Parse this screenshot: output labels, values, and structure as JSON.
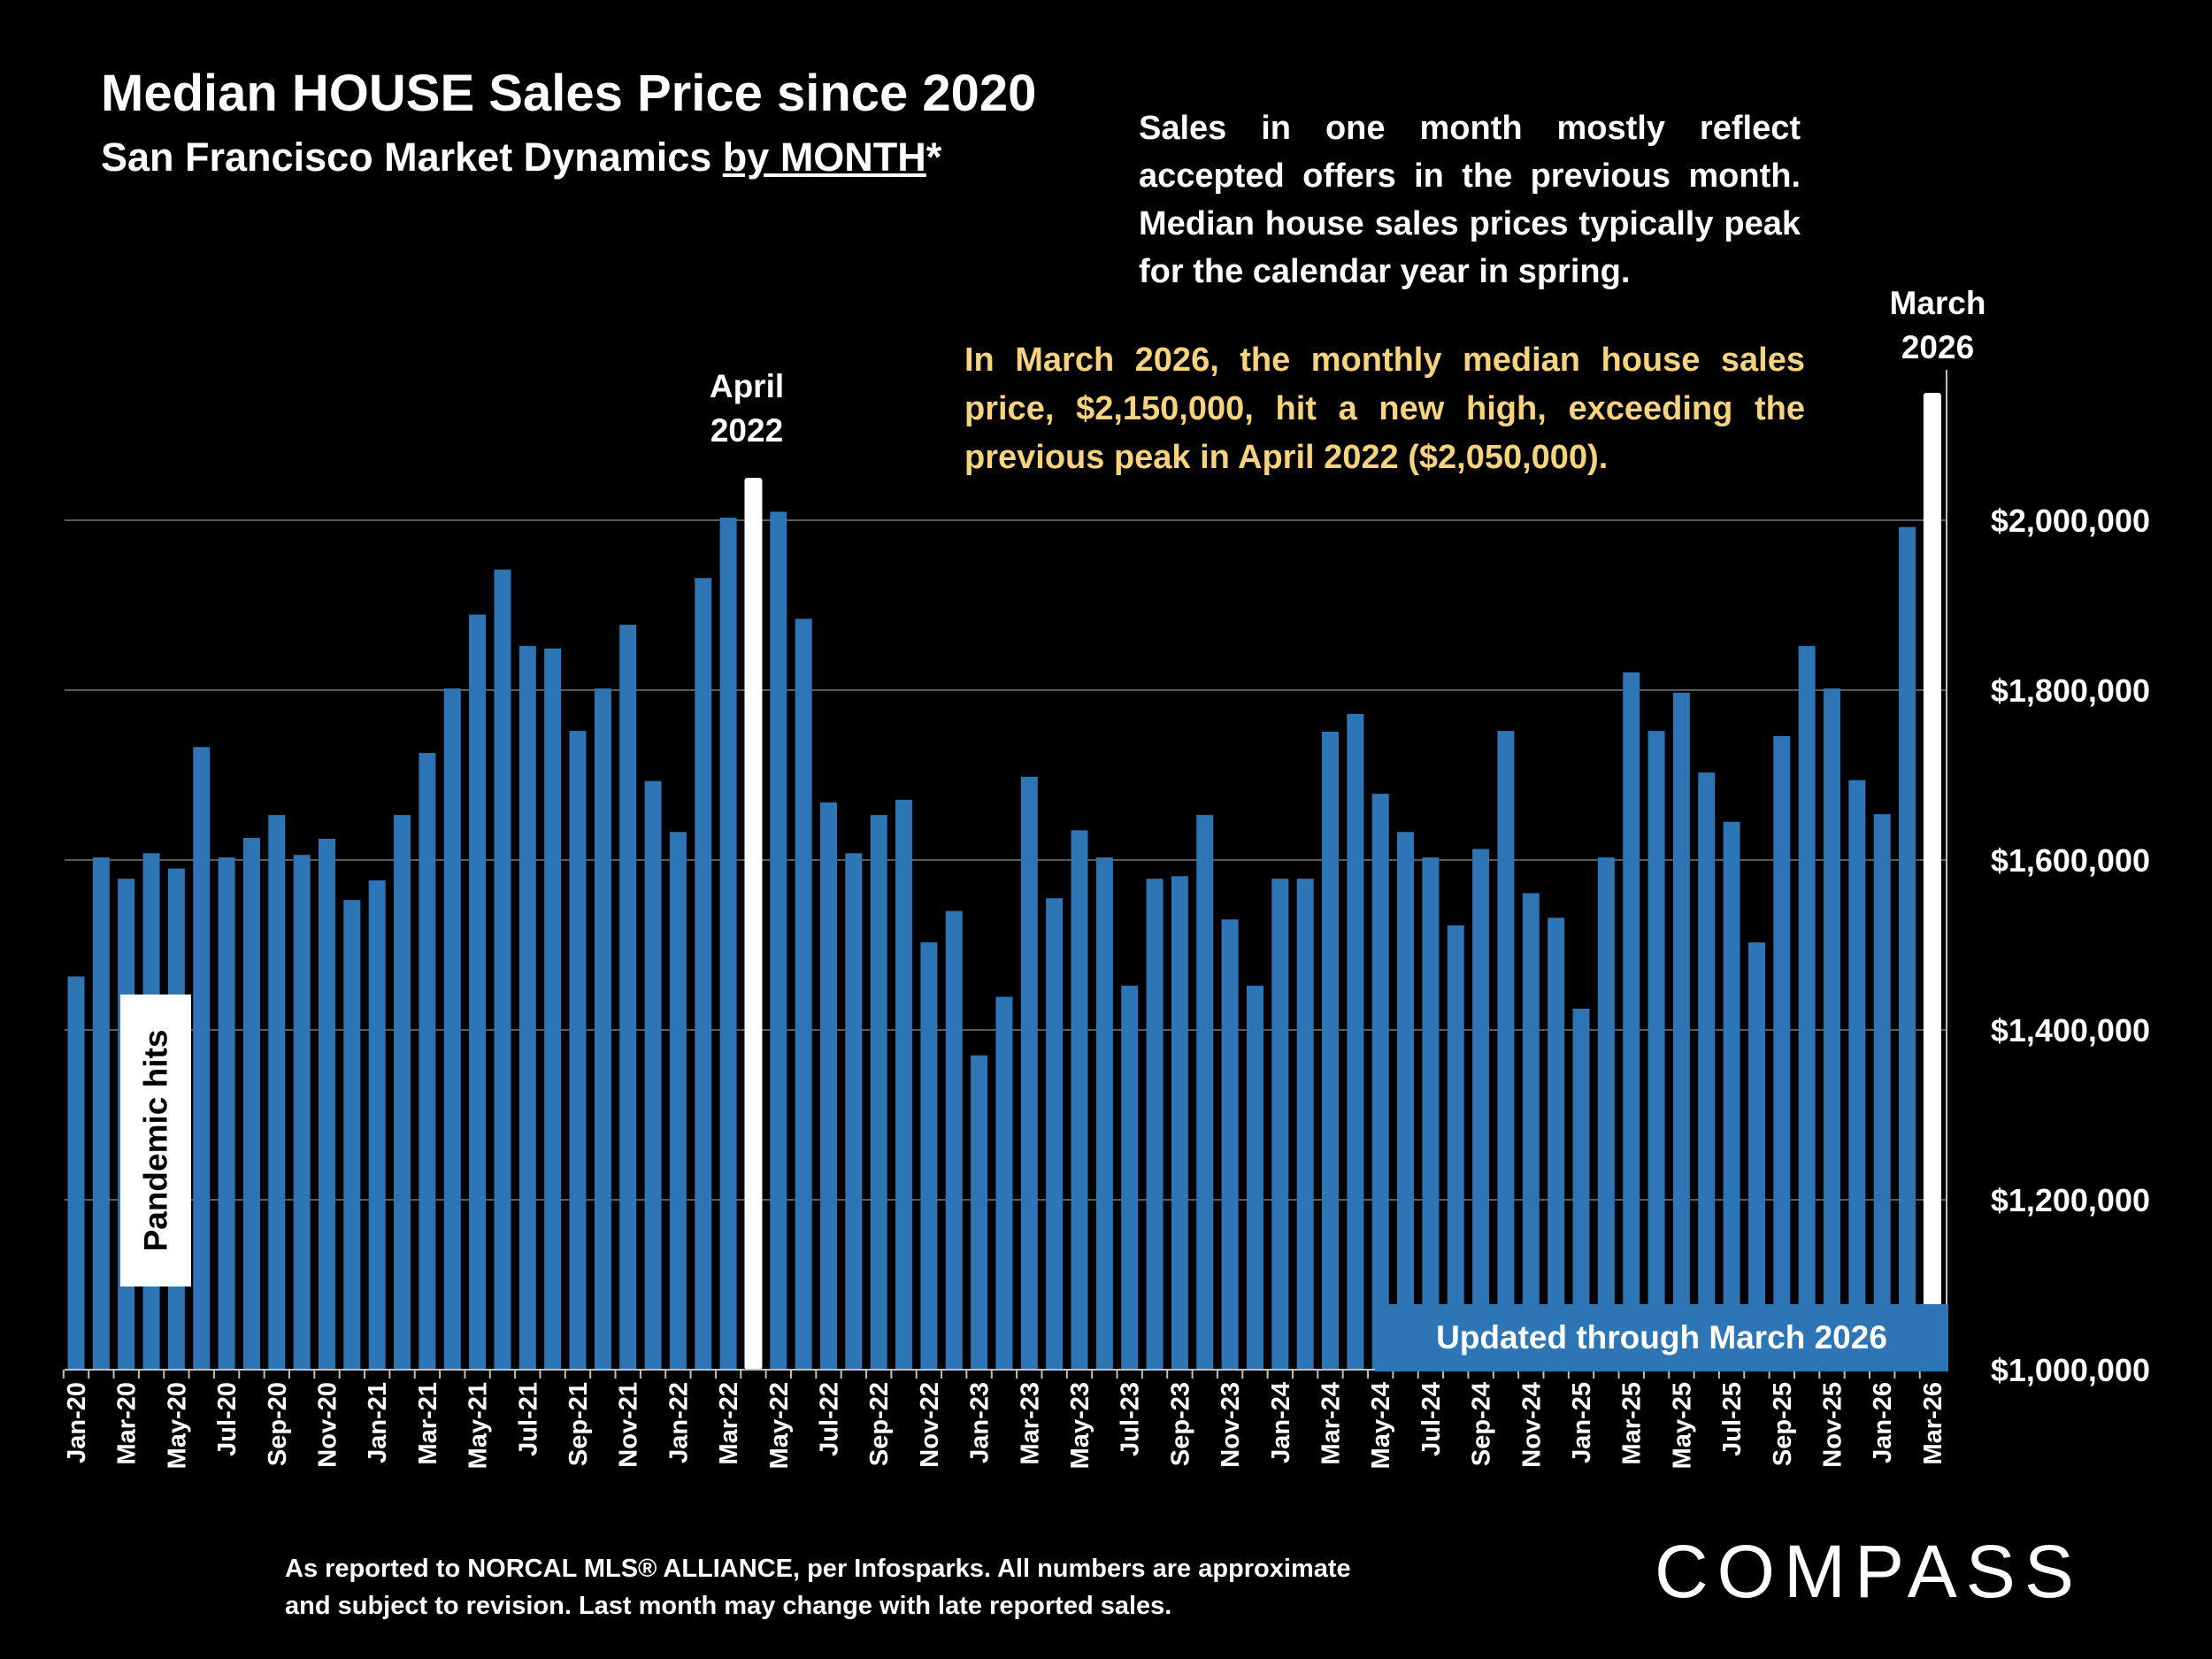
{
  "header": {
    "title": "Median HOUSE Sales Price since 2020",
    "subtitle_prefix": "San Francisco Market Dynamics ",
    "subtitle_underlined": "by MONTH",
    "subtitle_suffix": "*"
  },
  "notes": {
    "timing": "Sales in one month mostly reflect accepted offers in the previous month. Median house sales prices typically peak for the calendar year in spring.",
    "highlight": "In March 2026, the monthly median house sales price, $2,150,000, hit a new high, exceeding the previous peak in April 2022 ($2,050,000)."
  },
  "annotations": {
    "peak_2022_line1": "April",
    "peak_2022_line2": "2022",
    "peak_2026_line1": "March",
    "peak_2026_line2": "2026",
    "pandemic": "Pandemic hits",
    "updated": "Updated through March 2026"
  },
  "footer": {
    "line1": "As reported to NORCAL MLS® ALLIANCE, per Infosparks. All numbers are approximate",
    "line2": "and subject to revision. Last month may change with late reported sales.",
    "logo": "COMPASS"
  },
  "colors": {
    "bar": "#2e75b6",
    "highlight_bar": "#ffffff",
    "highlight_text": "#f7d37d",
    "background": "#000000"
  },
  "chart_data": {
    "type": "bar",
    "title": "Median HOUSE Sales Price since 2020",
    "xlabel": "",
    "ylabel": "",
    "ylim": [
      1000000,
      2150000
    ],
    "y_ticks": [
      "$1,000,000",
      "$1,200,000",
      "$1,400,000",
      "$1,600,000",
      "$1,800,000",
      "$2,000,000"
    ],
    "y_tick_values": [
      1000000,
      1200000,
      1400000,
      1600000,
      1800000,
      2000000
    ],
    "y_axis_side": "right",
    "grid": true,
    "categories": [
      "Jan-20",
      "Feb-20",
      "Mar-20",
      "Apr-20",
      "May-20",
      "Jun-20",
      "Jul-20",
      "Aug-20",
      "Sep-20",
      "Oct-20",
      "Nov-20",
      "Dec-20",
      "Jan-21",
      "Feb-21",
      "Mar-21",
      "Apr-21",
      "May-21",
      "Jun-21",
      "Jul-21",
      "Aug-21",
      "Sep-21",
      "Oct-21",
      "Nov-21",
      "Dec-21",
      "Jan-22",
      "Feb-22",
      "Mar-22",
      "Apr-22",
      "May-22",
      "Jun-22",
      "Jul-22",
      "Aug-22",
      "Sep-22",
      "Oct-22",
      "Nov-22",
      "Dec-22",
      "Jan-23",
      "Feb-23",
      "Mar-23",
      "Apr-23",
      "May-23",
      "Jun-23",
      "Jul-23",
      "Aug-23",
      "Sep-23",
      "Oct-23",
      "Nov-23",
      "Dec-23",
      "Jan-24",
      "Feb-24",
      "Mar-24",
      "Apr-24",
      "May-24",
      "Jun-24",
      "Jul-24",
      "Aug-24",
      "Sep-24",
      "Oct-24",
      "Nov-24",
      "Dec-24",
      "Jan-25",
      "Feb-25",
      "Mar-25",
      "Apr-25",
      "May-25",
      "Jun-25",
      "Jul-25",
      "Aug-25",
      "Sep-25",
      "Oct-25",
      "Nov-25",
      "Dec-25",
      "Jan-26",
      "Feb-26",
      "Mar-26"
    ],
    "x_tick_labels": [
      "Jan-20",
      "Mar-20",
      "May-20",
      "Jul-20",
      "Sep-20",
      "Nov-20",
      "Jan-21",
      "Mar-21",
      "May-21",
      "Jul-21",
      "Sep-21",
      "Nov-21",
      "Jan-22",
      "Mar-22",
      "May-22",
      "Jul-22",
      "Sep-22",
      "Nov-22",
      "Jan-23",
      "Mar-23",
      "May-23",
      "Jul-23",
      "Sep-23",
      "Nov-23",
      "Jan-24",
      "Mar-24",
      "May-24",
      "Jul-24",
      "Sep-24",
      "Nov-24",
      "Jan-25",
      "Mar-25",
      "May-25",
      "Jul-25",
      "Sep-25",
      "Nov-25",
      "Jan-26",
      "Mar-26"
    ],
    "values": [
      1463000,
      1603000,
      1578000,
      1608000,
      1590000,
      1733000,
      1603000,
      1626000,
      1653000,
      1606000,
      1625000,
      1553000,
      1576000,
      1653000,
      1726000,
      1802000,
      1889000,
      1942000,
      1852000,
      1849000,
      1752000,
      1802000,
      1877000,
      1693000,
      1633000,
      1932000,
      2003000,
      2050000,
      2010000,
      1884000,
      1668000,
      1608000,
      1653000,
      1671000,
      1503000,
      1540000,
      1370000,
      1439000,
      1698000,
      1555000,
      1635000,
      1603000,
      1452000,
      1578000,
      1581000,
      1653000,
      1530000,
      1452000,
      1578000,
      1578000,
      1751000,
      1772000,
      1678000,
      1633000,
      1603000,
      1523000,
      1613000,
      1752000,
      1561000,
      1532000,
      1425000,
      1603000,
      1821000,
      1752000,
      1797000,
      1703000,
      1645000,
      1503000,
      1746000,
      1852000,
      1802000,
      1694000,
      1654000,
      1992000,
      2150000
    ],
    "highlighted": [
      "Apr-22",
      "Mar-26"
    ]
  }
}
